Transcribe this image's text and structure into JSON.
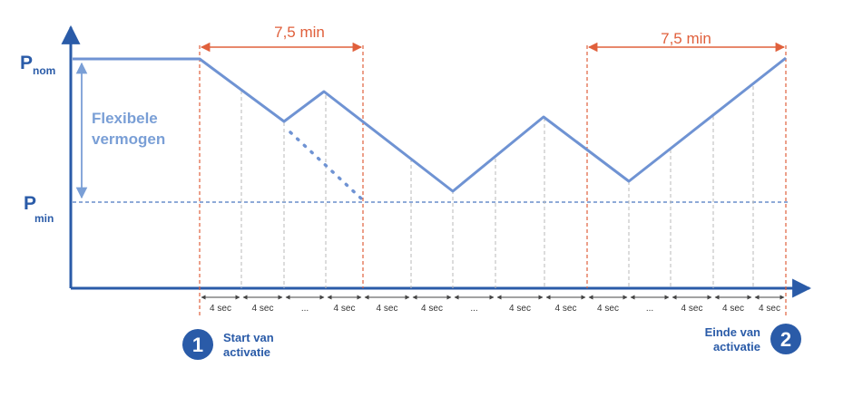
{
  "labels": {
    "p_nom": "P",
    "p_nom_sub": "nom",
    "p_min": "P",
    "p_min_sub": "min",
    "flex_line1": "Flexibele",
    "flex_line2": "vermogen",
    "duration_left": "7,5 min",
    "duration_right": "7,5 min"
  },
  "steps": [
    "4 sec",
    "4 sec",
    "...",
    "4 sec",
    "4 sec",
    "4 sec",
    "...",
    "4 sec",
    "4 sec",
    "4 sec",
    "...",
    "4 sec",
    "4 sec",
    "4 sec"
  ],
  "markers": [
    {
      "number": "1",
      "line1": "Start van",
      "line2": "activatie"
    },
    {
      "number": "2",
      "line1": "Einde van",
      "line2": "activatie"
    }
  ],
  "colors": {
    "axis": "#2a5ba8",
    "power_line": "#6f93d3",
    "duration": "#e0603c",
    "badge": "#2a5ba8"
  }
}
